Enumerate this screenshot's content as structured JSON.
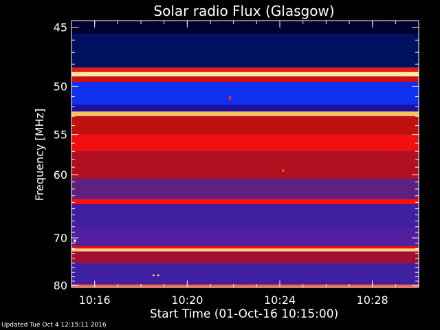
{
  "chart_data": {
    "type": "heatmap",
    "title": "Solar radio Flux (Glasgow)",
    "xlabel": "Start Time (01-Oct-16 10:15:00)",
    "ylabel": "Frequency [MHz]",
    "x_range_minutes_after_start": [
      0,
      15
    ],
    "xticks": [
      {
        "label": "10:16",
        "minute": 1
      },
      {
        "label": "10:20",
        "minute": 5
      },
      {
        "label": "10:24",
        "minute": 9
      },
      {
        "label": "10:28",
        "minute": 13
      }
    ],
    "ylim_mhz": [
      44.5,
      80.5
    ],
    "y_scale": "reciprocal",
    "yticks": [
      45,
      50,
      55,
      60,
      70,
      80
    ],
    "y_minor_ticks": [
      46,
      47,
      48,
      49,
      51,
      52,
      53,
      54,
      56,
      57,
      58,
      59,
      61,
      62,
      63,
      64,
      65,
      66,
      67,
      68,
      69,
      71,
      72,
      73,
      74,
      75,
      76,
      77,
      78,
      79
    ],
    "colors": {
      "low": "#000040",
      "mid": "#3020c0",
      "high": "#e01010",
      "peak": "#ffe080"
    },
    "bands": [
      {
        "f0": 44.5,
        "f1": 45.5,
        "color": "#000030"
      },
      {
        "f0": 45.5,
        "f1": 48.3,
        "color": "#001060"
      },
      {
        "f0": 48.3,
        "f1": 48.7,
        "color": "#e02010"
      },
      {
        "f0": 48.7,
        "f1": 49.1,
        "color": "#ffe8a0"
      },
      {
        "f0": 49.1,
        "f1": 49.6,
        "color": "#d01010"
      },
      {
        "f0": 49.6,
        "f1": 51.8,
        "color": "#1030f0"
      },
      {
        "f0": 51.8,
        "f1": 52.5,
        "color": "#2010a0"
      },
      {
        "f0": 52.5,
        "f1": 53.0,
        "color": "#ffc060"
      },
      {
        "f0": 53.0,
        "f1": 55.0,
        "color": "#c01010"
      },
      {
        "f0": 55.0,
        "f1": 57.0,
        "color": "#f01010"
      },
      {
        "f0": 57.0,
        "f1": 60.5,
        "color": "#b01020"
      },
      {
        "f0": 60.5,
        "f1": 63.5,
        "color": "#602080"
      },
      {
        "f0": 63.5,
        "f1": 64.3,
        "color": "#ff1010"
      },
      {
        "f0": 64.3,
        "f1": 68.0,
        "color": "#4020a0"
      },
      {
        "f0": 68.0,
        "f1": 71.5,
        "color": "#5020a0"
      },
      {
        "f0": 71.5,
        "f1": 72.0,
        "color": "#e01010"
      },
      {
        "f0": 72.0,
        "f1": 72.6,
        "color": "#ffd080"
      },
      {
        "f0": 72.6,
        "f1": 75.0,
        "color": "#a01030"
      },
      {
        "f0": 75.0,
        "f1": 79.8,
        "color": "#4020a0"
      },
      {
        "f0": 79.8,
        "f1": 80.5,
        "color": "#ff6040"
      }
    ],
    "bursts": [
      {
        "minute": 0.1,
        "f0": 70.3,
        "f1": 70.8,
        "color": "#ffffe0"
      },
      {
        "minute": 6.8,
        "f0": 50.9,
        "f1": 51.3,
        "color": "#ff3010"
      },
      {
        "minute": 9.1,
        "f0": 59.3,
        "f1": 59.6,
        "color": "#ff6020"
      },
      {
        "minute": 3.5,
        "f0": 77.5,
        "f1": 77.8,
        "color": "#ffe0a0"
      },
      {
        "minute": 3.7,
        "f0": 77.5,
        "f1": 77.8,
        "color": "#ffe0a0"
      }
    ]
  },
  "footer": "Updated Tue Oct  4 12:15:11 2016"
}
